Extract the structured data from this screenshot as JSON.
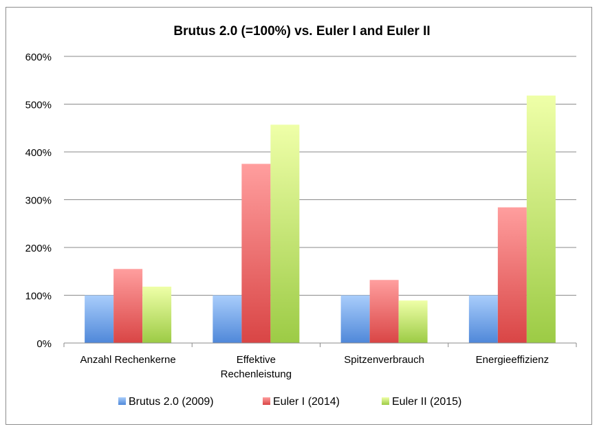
{
  "chart_data": {
    "type": "bar",
    "title": "Brutus 2.0 (=100%) vs. Euler I and Euler II",
    "categories": [
      [
        "Anzahl Rechenkerne"
      ],
      [
        "Effektive",
        "Rechenleistung"
      ],
      [
        "Spitzenverbrauch"
      ],
      [
        "Energieeffizienz"
      ]
    ],
    "series": [
      {
        "name": "Brutus 2.0 (2009)",
        "values": [
          100,
          100,
          100,
          100
        ],
        "color_top": "#a9cdfb",
        "color_bottom": "#4f88d9"
      },
      {
        "name": "Euler I (2014)",
        "values": [
          155,
          375,
          132,
          284
        ],
        "color_top": "#ff9e9e",
        "color_bottom": "#d94545"
      },
      {
        "name": "Euler II (2015)",
        "values": [
          118,
          457,
          89,
          518
        ],
        "color_top": "#efffa8",
        "color_bottom": "#9ccb45"
      }
    ],
    "y_ticks": [
      "0%",
      "100%",
      "200%",
      "300%",
      "400%",
      "500%",
      "600%"
    ],
    "y_tick_values": [
      0,
      100,
      200,
      300,
      400,
      500,
      600
    ],
    "ylim": [
      0,
      600
    ],
    "grid": true,
    "legend_position": "bottom",
    "xlabel": "",
    "ylabel": ""
  }
}
